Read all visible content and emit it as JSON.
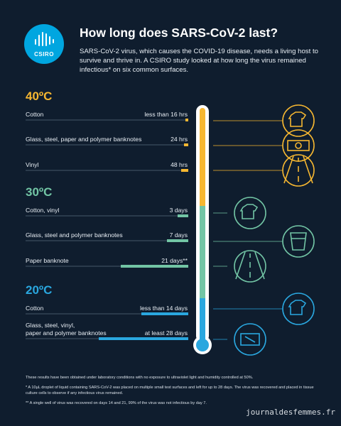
{
  "header": {
    "logo": "CSIRO",
    "title": "How long does SARS-CoV-2 last?",
    "intro": "SARS-CoV-2 virus, which causes the COVID-19 disease, needs a living host to survive and thrive in. A CSIRO study looked at how long the virus remained infectious* on six common surfaces."
  },
  "sections": [
    {
      "temperature": "40ºC",
      "rows": [
        {
          "surface": "Cotton",
          "duration": "less than 16 hrs"
        },
        {
          "surface": "Glass, steel, paper and polymer banknotes",
          "duration": "24 hrs"
        },
        {
          "surface": "Vinyl",
          "duration": "48 hrs"
        }
      ]
    },
    {
      "temperature": "30ºC",
      "rows": [
        {
          "surface": "Cotton, vinyl",
          "duration": "3 days"
        },
        {
          "surface": "Glass, steel and polymer banknotes",
          "duration": "7 days"
        },
        {
          "surface": "Paper banknote",
          "duration": "21 days**"
        }
      ]
    },
    {
      "temperature": "20ºC",
      "rows": [
        {
          "surface": "Cotton",
          "duration": "less than 14 days"
        },
        {
          "surface": "Glass, steel, vinyl,\npaper and polymer banknotes",
          "duration": "at least 28 days"
        }
      ]
    }
  ],
  "footnotes": [
    "These results have been obtained under laboratory conditions with no exposure to ultraviolet light and humidity controlled at 50%.",
    "* A 10µL droplet of liquid containing SARS-CoV-2 was placed on multiple small test surfaces and left for up to 28 days. The virus was recovered and placed in tissue culture cells to observe if any infectious virus remained.",
    "** A single well of virus was recovered on days 14 and 21, 99% of the virus was not infectious by day 7."
  ],
  "watermark": "journaldesfemmes.fr"
}
